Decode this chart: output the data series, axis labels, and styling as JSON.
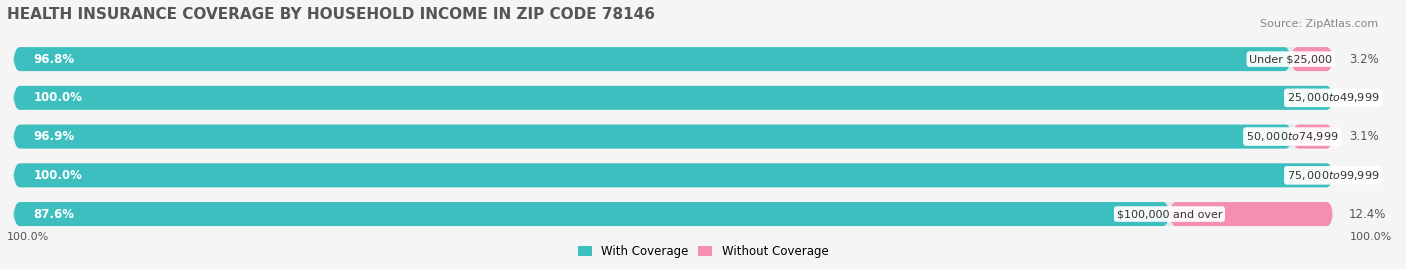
{
  "title": "HEALTH INSURANCE COVERAGE BY HOUSEHOLD INCOME IN ZIP CODE 78146",
  "source": "Source: ZipAtlas.com",
  "categories": [
    "Under $25,000",
    "$25,000 to $49,999",
    "$50,000 to $74,999",
    "$75,000 to $99,999",
    "$100,000 and over"
  ],
  "with_coverage": [
    96.8,
    100.0,
    96.9,
    100.0,
    87.6
  ],
  "without_coverage": [
    3.2,
    0.0,
    3.1,
    0.0,
    12.4
  ],
  "color_with": "#3dbfbf",
  "color_without": "#f48fb1",
  "bg_color": "#f5f5f5",
  "bar_bg": "#e8e8e8",
  "title_fontsize": 11,
  "label_fontsize": 8.5,
  "tick_fontsize": 8,
  "legend_fontsize": 8.5,
  "bar_height": 0.62,
  "xlim": [
    0,
    100
  ]
}
